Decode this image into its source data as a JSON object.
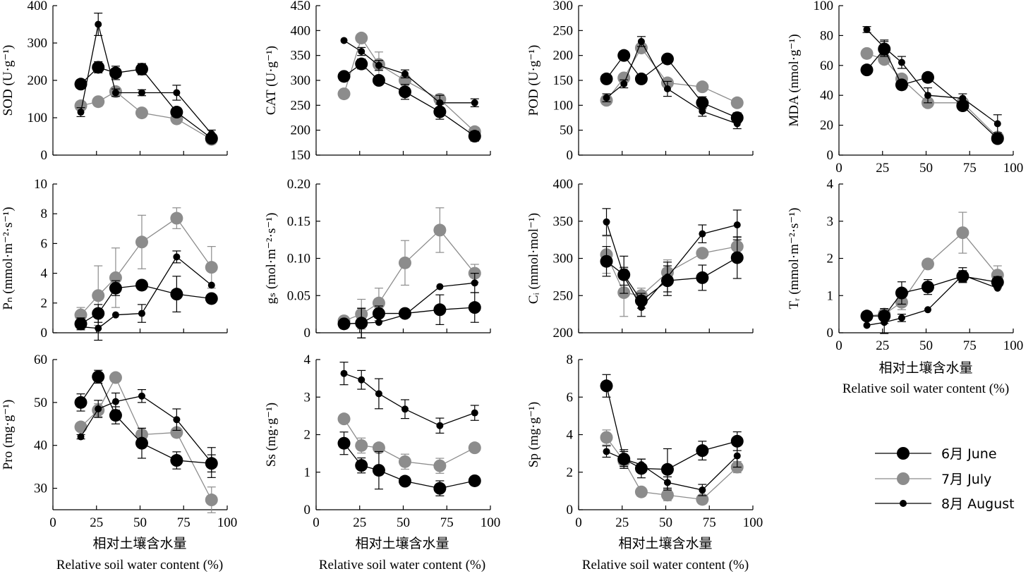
{
  "legend": {
    "entries": [
      {
        "label": "6月 June",
        "color": "#000000",
        "marker": "large-black"
      },
      {
        "label": "7月 July",
        "color": "#8c8c8c",
        "marker": "large-gray"
      },
      {
        "label": "8月 August",
        "color": "#000000",
        "marker": "small-black"
      }
    ]
  },
  "x_axis": {
    "label_cn": "相对土壤含水量",
    "label_en": "Relative soil water content (%)",
    "ticks": [
      0,
      25,
      50,
      75,
      100
    ],
    "range": [
      0,
      100
    ]
  },
  "x_positions": [
    16,
    26,
    36,
    51,
    71,
    91
  ],
  "chart_data": [
    {
      "type": "line",
      "id": "SOD",
      "ylabel": "SOD (U·g⁻¹)",
      "ylim": [
        0,
        400
      ],
      "yticks": [
        0,
        100,
        200,
        300,
        400
      ],
      "series": [
        {
          "name": "6月 June",
          "values": [
            190,
            235,
            220,
            230,
            115,
            45
          ],
          "errors": [
            0,
            15,
            18,
            15,
            10,
            8
          ]
        },
        {
          "name": "7月 July",
          "values": [
            132,
            143,
            170,
            113,
            97,
            42
          ],
          "errors": [
            0,
            0,
            10,
            0,
            0,
            8
          ]
        },
        {
          "name": "8月 August",
          "values": [
            115,
            350,
            167,
            167,
            167,
            57
          ],
          "errors": [
            12,
            30,
            10,
            8,
            20,
            10
          ]
        }
      ]
    },
    {
      "type": "line",
      "id": "CAT",
      "ylabel": "CAT (U·g⁻¹)",
      "ylim": [
        150,
        450
      ],
      "yticks": [
        150,
        200,
        250,
        300,
        350,
        400,
        450
      ],
      "series": [
        {
          "name": "6月 June",
          "values": [
            308,
            333,
            300,
            277,
            237,
            188
          ],
          "errors": [
            0,
            10,
            0,
            15,
            15,
            10
          ]
        },
        {
          "name": "7月 July",
          "values": [
            273,
            385,
            332,
            300,
            262,
            197
          ],
          "errors": [
            0,
            0,
            25,
            10,
            10,
            8
          ]
        },
        {
          "name": "8月 August",
          "values": [
            380,
            358,
            330,
            313,
            255,
            255
          ],
          "errors": [
            0,
            8,
            10,
            8,
            15,
            8
          ]
        }
      ]
    },
    {
      "type": "line",
      "id": "POD",
      "ylabel": "POD (U·g⁻¹)",
      "ylim": [
        0,
        300
      ],
      "yticks": [
        0,
        50,
        100,
        150,
        200,
        250,
        300
      ],
      "series": [
        {
          "name": "6月 June",
          "values": [
            153,
            200,
            153,
            193,
            105,
            75
          ],
          "errors": [
            0,
            0,
            0,
            0,
            12,
            10
          ]
        },
        {
          "name": "7月 July",
          "values": [
            110,
            155,
            215,
            145,
            137,
            105
          ],
          "errors": [
            0,
            0,
            0,
            0,
            0,
            0
          ]
        },
        {
          "name": "8月 August",
          "values": [
            115,
            143,
            228,
            133,
            88,
            63
          ],
          "errors": [
            8,
            8,
            10,
            15,
            10,
            10
          ]
        }
      ]
    },
    {
      "type": "line",
      "id": "MDA",
      "ylabel": "MDA (nmol·g⁻¹)",
      "ylim": [
        0,
        100
      ],
      "yticks": [
        0,
        20,
        40,
        60,
        80,
        100
      ],
      "series": [
        {
          "name": "6月 June",
          "values": [
            57,
            71,
            47,
            52,
            33,
            11
          ],
          "errors": [
            0,
            5,
            3,
            3,
            3,
            3
          ]
        },
        {
          "name": "7月 July",
          "values": [
            68,
            64,
            51,
            35,
            35,
            12
          ],
          "errors": [
            0,
            0,
            0,
            0,
            3,
            0
          ]
        },
        {
          "name": "8月 August",
          "values": [
            84,
            72,
            62,
            40,
            38,
            21
          ],
          "errors": [
            2,
            5,
            4,
            5,
            3,
            6
          ]
        }
      ]
    },
    {
      "type": "line",
      "id": "Pn",
      "ylabel": "Pₙ (mmol·m⁻²·s⁻¹)",
      "ylim": [
        0,
        10
      ],
      "yticks": [
        0,
        2,
        4,
        6,
        8,
        10
      ],
      "series": [
        {
          "name": "6月 June",
          "values": [
            0.6,
            1.3,
            3.0,
            3.2,
            2.6,
            2.3
          ],
          "errors": [
            0.4,
            0.6,
            0.5,
            0.3,
            1.2,
            0
          ]
        },
        {
          "name": "7月 July",
          "values": [
            1.2,
            2.5,
            3.7,
            6.1,
            7.7,
            4.4
          ],
          "errors": [
            0.5,
            2.0,
            2.0,
            1.8,
            0.7,
            1.4
          ]
        },
        {
          "name": "8月 August",
          "values": [
            0.4,
            0.3,
            1.2,
            1.3,
            5.1,
            3.2
          ],
          "errors": [
            0,
            0.8,
            0,
            0.6,
            0.4,
            0
          ]
        }
      ]
    },
    {
      "type": "line",
      "id": "gs",
      "ylabel": "gₛ (mol·m⁻²·s⁻¹)",
      "ylim": [
        0,
        0.2
      ],
      "yticks": [
        0,
        0.05,
        0.1,
        0.15,
        0.2
      ],
      "series": [
        {
          "name": "6月 June",
          "values": [
            0.012,
            0.013,
            0.026,
            0.026,
            0.031,
            0.034
          ],
          "errors": [
            0,
            0.02,
            0.01,
            0.005,
            0.02,
            0.02
          ]
        },
        {
          "name": "7月 July",
          "values": [
            0.016,
            0.025,
            0.04,
            0.094,
            0.138,
            0.08
          ],
          "errors": [
            0,
            0.02,
            0.02,
            0.03,
            0.03,
            0.012
          ]
        },
        {
          "name": "8月 August",
          "values": [
            0.012,
            0.013,
            0.014,
            0.024,
            0.062,
            0.067
          ],
          "errors": [
            0,
            0.02,
            0,
            0,
            0,
            0.013
          ]
        }
      ]
    },
    {
      "type": "line",
      "id": "Ci",
      "ylabel": "Cᵢ (mmol·mol⁻¹)",
      "ylim": [
        200,
        400
      ],
      "yticks": [
        200,
        250,
        300,
        350,
        400
      ],
      "series": [
        {
          "name": "6月 June",
          "values": [
            296,
            278,
            243,
            270,
            274,
            301
          ],
          "errors": [
            20,
            25,
            10,
            20,
            17,
            28
          ]
        },
        {
          "name": "7月 July",
          "values": [
            305,
            254,
            250,
            281,
            307,
            316
          ],
          "errors": [
            25,
            32,
            10,
            17,
            0,
            12
          ]
        },
        {
          "name": "8月 August",
          "values": [
            349,
            276,
            234,
            275,
            333,
            345
          ],
          "errors": [
            18,
            12,
            12,
            20,
            12,
            20
          ]
        }
      ]
    },
    {
      "type": "line",
      "id": "Tr",
      "ylabel": "Tᵣ (mmol·m⁻²·s⁻¹)",
      "ylim": [
        0,
        4
      ],
      "yticks": [
        0,
        1,
        2,
        3,
        4
      ],
      "series": [
        {
          "name": "6月 June",
          "values": [
            0.45,
            0.45,
            1.07,
            1.23,
            1.52,
            1.36
          ],
          "errors": [
            0,
            0.2,
            0.3,
            0.2,
            0.15,
            0.15
          ]
        },
        {
          "name": "7月 July",
          "values": [
            0.45,
            0.5,
            0.82,
            1.85,
            2.69,
            1.55
          ],
          "errors": [
            0.1,
            0.15,
            0.2,
            0.1,
            0.55,
            0.25
          ]
        },
        {
          "name": "8月 August",
          "values": [
            0.2,
            0.28,
            0.4,
            0.62,
            1.55,
            1.2
          ],
          "errors": [
            0,
            0.3,
            0.1,
            0,
            0.2,
            0
          ]
        }
      ]
    },
    {
      "type": "line",
      "id": "Pro",
      "ylabel": "Pro (mg·g⁻¹)",
      "ylim": [
        25,
        60
      ],
      "yticks": [
        30,
        40,
        50,
        60
      ],
      "series": [
        {
          "name": "6月 June",
          "values": [
            50,
            56,
            47,
            40.5,
            36.5,
            35.8
          ],
          "errors": [
            2,
            1.5,
            2,
            3.5,
            2,
            2
          ]
        },
        {
          "name": "7月 July",
          "values": [
            44.3,
            48.2,
            55.8,
            42.5,
            43,
            27.3
          ],
          "errors": [
            0,
            1.5,
            0,
            1.5,
            0,
            3
          ]
        },
        {
          "name": "8月 August",
          "values": [
            42,
            48.5,
            50.2,
            51.5,
            46,
            36
          ],
          "errors": [
            0.5,
            2,
            2,
            1.5,
            2.5,
            3.5
          ]
        }
      ]
    },
    {
      "type": "line",
      "id": "Ss",
      "ylabel": "Ss (mg·g⁻¹)",
      "ylim": [
        0,
        4
      ],
      "yticks": [
        0,
        1,
        2,
        3,
        4
      ],
      "series": [
        {
          "name": "6月 June",
          "values": [
            1.77,
            1.18,
            1.05,
            0.76,
            0.57,
            0.77
          ],
          "errors": [
            0.3,
            0.2,
            0.5,
            0,
            0.2,
            0.1
          ]
        },
        {
          "name": "7月 July",
          "values": [
            2.42,
            1.71,
            1.65,
            1.28,
            1.17,
            1.65
          ],
          "errors": [
            0.1,
            0.2,
            0,
            0.2,
            0.2,
            0.1
          ]
        },
        {
          "name": "8月 August",
          "values": [
            3.63,
            3.46,
            3.09,
            2.68,
            2.24,
            2.58
          ],
          "errors": [
            0.3,
            0.25,
            0.4,
            0.25,
            0.2,
            0.2
          ]
        }
      ]
    },
    {
      "type": "line",
      "id": "Sp",
      "ylabel": "Sp (mg·g⁻¹)",
      "ylim": [
        0,
        8
      ],
      "yticks": [
        0,
        2,
        4,
        6,
        8
      ],
      "series": [
        {
          "name": "6月 June",
          "values": [
            6.6,
            2.7,
            2.2,
            2.15,
            3.15,
            3.65
          ],
          "errors": [
            0.6,
            0.5,
            0.5,
            1.1,
            0.5,
            0.5
          ]
        },
        {
          "name": "7月 July",
          "values": [
            3.85,
            2.6,
            0.95,
            0.78,
            0.55,
            2.27
          ],
          "errors": [
            0.4,
            0.3,
            0,
            0.3,
            0,
            0.3
          ]
        },
        {
          "name": "8月 August",
          "values": [
            3.1,
            2.7,
            2.4,
            1.45,
            1.05,
            2.87
          ],
          "errors": [
            0.3,
            0.4,
            0.3,
            0.3,
            0.3,
            0.6
          ]
        }
      ]
    }
  ]
}
